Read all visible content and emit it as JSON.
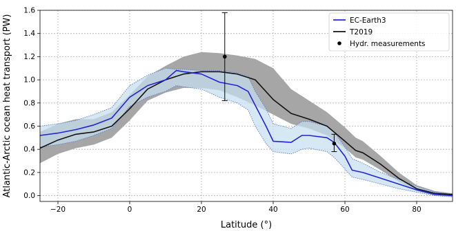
{
  "chart_data": {
    "type": "line",
    "xlabel": "Latitude (°)",
    "ylabel": "Atlantic-Arctic ocean heat transport (PW)",
    "xlim": [
      -25,
      90
    ],
    "ylim": [
      -0.05,
      1.6
    ],
    "xticks": [
      -20,
      0,
      20,
      40,
      60,
      80
    ],
    "yticks": [
      0.0,
      0.2,
      0.4,
      0.6,
      0.8,
      1.0,
      1.2,
      1.4,
      1.6
    ],
    "xtick_labels": [
      "−20",
      "0",
      "20",
      "40",
      "60",
      "80"
    ],
    "ytick_labels": [
      "0.0",
      "0.2",
      "0.4",
      "0.6",
      "0.8",
      "1.0",
      "1.2",
      "1.4",
      "1.6"
    ],
    "grid": true,
    "legend_position": "top-right",
    "colors": {
      "ec_earth3": "#2222dd",
      "ec_earth3_band": "#c5dfee",
      "ec_earth3_band_edge": "#5577cc",
      "t2019": "#111111",
      "t2019_band": "#a6a6a6",
      "measurements": "#000000"
    },
    "series": [
      {
        "name": "EC-Earth3",
        "x": [
          -25,
          -20,
          -15,
          -10,
          -5,
          0,
          5,
          10,
          13,
          15,
          20,
          25,
          30,
          33,
          35,
          38,
          40,
          45,
          48,
          50,
          55,
          57,
          60,
          62,
          65,
          70,
          75,
          80,
          85,
          90
        ],
        "y": [
          0.52,
          0.54,
          0.57,
          0.61,
          0.67,
          0.85,
          0.95,
          1.0,
          1.08,
          1.07,
          1.05,
          0.98,
          0.95,
          0.9,
          0.78,
          0.6,
          0.47,
          0.46,
          0.52,
          0.52,
          0.5,
          0.46,
          0.34,
          0.22,
          0.2,
          0.15,
          0.1,
          0.05,
          0.01,
          0.0
        ],
        "lower": [
          0.42,
          0.44,
          0.47,
          0.52,
          0.58,
          0.77,
          0.85,
          0.9,
          0.95,
          0.94,
          0.92,
          0.85,
          0.8,
          0.74,
          0.6,
          0.45,
          0.38,
          0.36,
          0.4,
          0.41,
          0.38,
          0.33,
          0.23,
          0.16,
          0.14,
          0.1,
          0.06,
          0.03,
          0.0,
          -0.01
        ],
        "upper": [
          0.6,
          0.62,
          0.65,
          0.7,
          0.76,
          0.95,
          1.04,
          1.1,
          1.09,
          1.09,
          1.08,
          1.08,
          1.06,
          1.03,
          0.9,
          0.75,
          0.62,
          0.58,
          0.64,
          0.64,
          0.6,
          0.55,
          0.42,
          0.32,
          0.28,
          0.2,
          0.14,
          0.08,
          0.03,
          0.01
        ]
      },
      {
        "name": "T2019",
        "x": [
          -25,
          -20,
          -15,
          -10,
          -5,
          0,
          5,
          10,
          15,
          20,
          25,
          30,
          35,
          40,
          45,
          50,
          55,
          60,
          63,
          65,
          70,
          75,
          80,
          85,
          90
        ],
        "y": [
          0.41,
          0.48,
          0.53,
          0.55,
          0.6,
          0.75,
          0.92,
          1.0,
          1.05,
          1.07,
          1.07,
          1.05,
          1.0,
          0.83,
          0.71,
          0.66,
          0.6,
          0.47,
          0.39,
          0.37,
          0.27,
          0.15,
          0.06,
          0.02,
          0.01
        ],
        "lower": [
          0.28,
          0.36,
          0.41,
          0.44,
          0.5,
          0.65,
          0.82,
          0.89,
          0.93,
          0.93,
          0.91,
          0.85,
          0.78,
          0.7,
          0.62,
          0.58,
          0.52,
          0.41,
          0.33,
          0.31,
          0.22,
          0.12,
          0.04,
          0.0,
          -0.01
        ],
        "upper": [
          0.55,
          0.62,
          0.66,
          0.66,
          0.72,
          0.87,
          1.03,
          1.12,
          1.2,
          1.24,
          1.23,
          1.21,
          1.18,
          1.1,
          0.92,
          0.82,
          0.72,
          0.59,
          0.5,
          0.47,
          0.34,
          0.2,
          0.09,
          0.04,
          0.02
        ]
      }
    ],
    "measurements": {
      "name": "Hydr. measurements",
      "points": [
        {
          "x": 26.5,
          "y": 1.2,
          "err_low": 0.82,
          "err_high": 1.58
        },
        {
          "x": 57,
          "y": 0.45,
          "err_low": 0.38,
          "err_high": 0.53
        }
      ]
    }
  }
}
